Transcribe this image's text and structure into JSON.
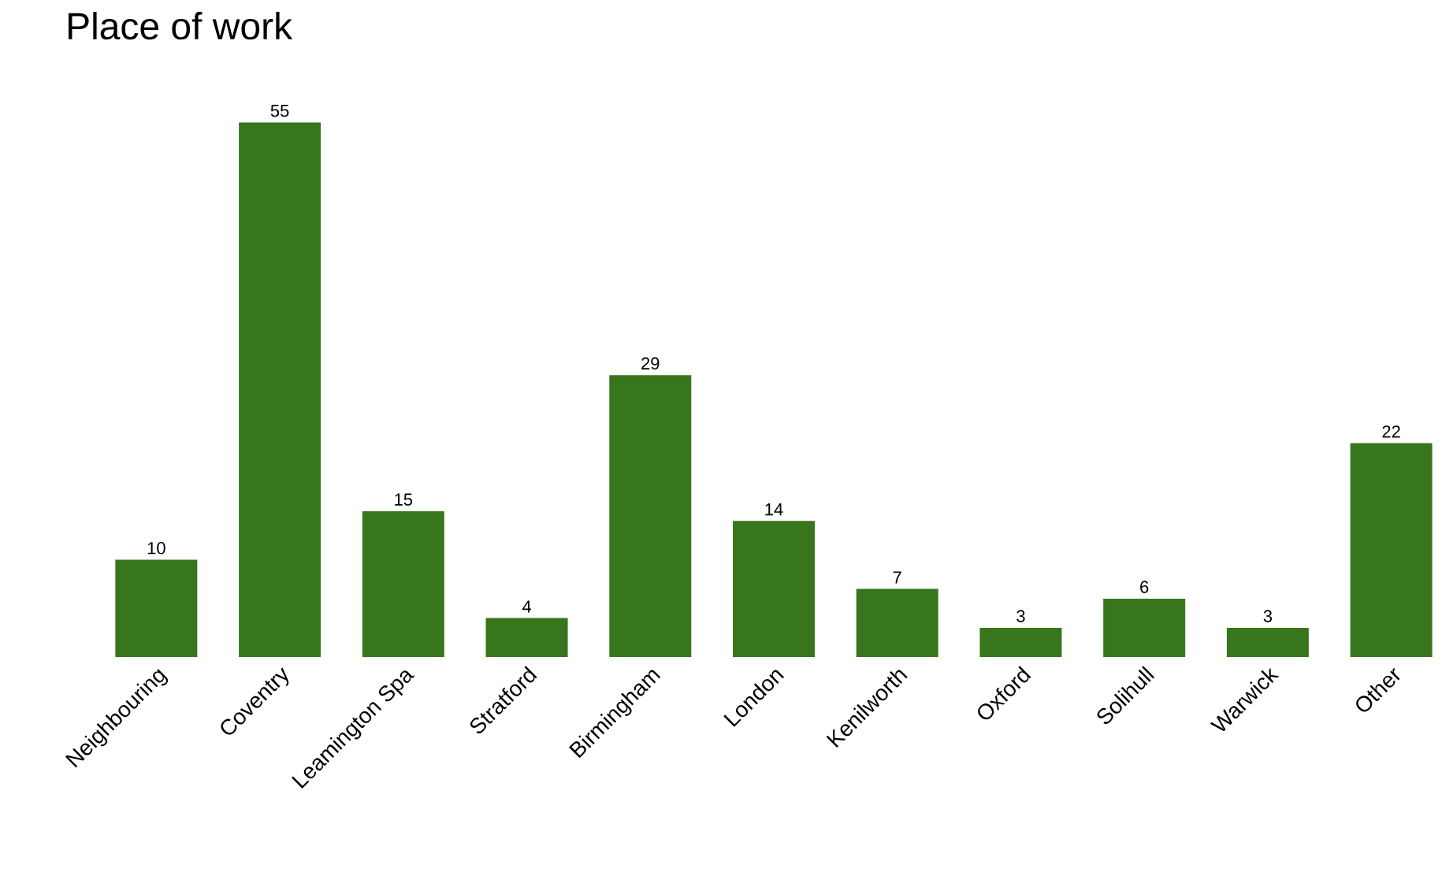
{
  "chart_data": {
    "type": "bar",
    "title": "Place of work",
    "categories": [
      "Neighbouring",
      "Coventry",
      "Leamington Spa",
      "Stratford",
      "Birmingham",
      "London",
      "Kenilworth",
      "Oxford",
      "Solihull",
      "Warwick",
      "Other"
    ],
    "values": [
      10,
      55,
      15,
      4,
      29,
      14,
      7,
      3,
      6,
      3,
      22
    ],
    "color": "#38761d",
    "data_labels": true
  }
}
